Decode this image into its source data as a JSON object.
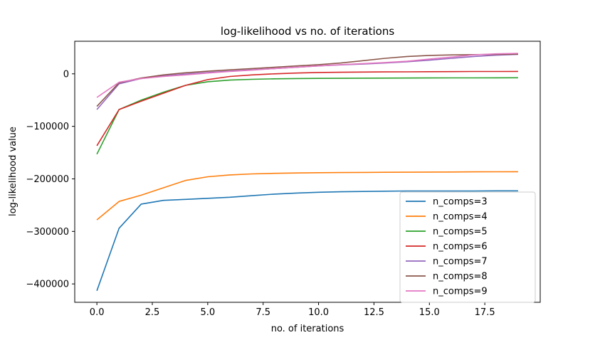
{
  "chart_data": {
    "type": "line",
    "title": "log-likelihood vs no. of iterations",
    "xlabel": "no. of iterations",
    "ylabel": "log-likelihood value",
    "xlim": [
      -1,
      20
    ],
    "ylim": [
      -435000,
      62000
    ],
    "xticks": [
      0.0,
      2.5,
      5.0,
      7.5,
      10.0,
      12.5,
      15.0,
      17.5
    ],
    "xtick_labels": [
      "0.0",
      "2.5",
      "5.0",
      "7.5",
      "10.0",
      "12.5",
      "15.0",
      "17.5"
    ],
    "yticks": [
      0,
      -100000,
      -200000,
      -300000,
      -400000
    ],
    "ytick_labels": [
      "0",
      "−100000",
      "−200000",
      "−300000",
      "−400000"
    ],
    "grid": false,
    "legend_position": "lower-right",
    "x": [
      0,
      1,
      2,
      3,
      4,
      5,
      6,
      7,
      8,
      9,
      10,
      11,
      12,
      13,
      14,
      15,
      16,
      17,
      18,
      19
    ],
    "series": [
      {
        "name": "n_comps=3",
        "color": "#1f77b4",
        "values": [
          -413000,
          -294000,
          -248000,
          -241000,
          -239000,
          -237000,
          -235000,
          -232000,
          -229000,
          -227000,
          -225500,
          -224500,
          -224000,
          -223500,
          -223000,
          -223000,
          -223000,
          -223000,
          -222800,
          -222800
        ]
      },
      {
        "name": "n_comps=4",
        "color": "#ff7f0e",
        "values": [
          -278000,
          -243000,
          -231000,
          -217000,
          -203000,
          -196000,
          -192500,
          -190500,
          -189500,
          -188800,
          -188300,
          -188000,
          -187700,
          -187500,
          -187300,
          -187100,
          -186900,
          -186700,
          -186500,
          -186400
        ]
      },
      {
        "name": "n_comps=5",
        "color": "#2ca02c",
        "values": [
          -153000,
          -68000,
          -50000,
          -35000,
          -22000,
          -15000,
          -12000,
          -10500,
          -9500,
          -9000,
          -8700,
          -8500,
          -8300,
          -8100,
          -8000,
          -7900,
          -7800,
          -7700,
          -7600,
          -7500
        ]
      },
      {
        "name": "n_comps=6",
        "color": "#d62728",
        "values": [
          -137000,
          -68000,
          -52000,
          -37000,
          -22000,
          -11000,
          -5000,
          -2000,
          0,
          1500,
          2500,
          3000,
          3300,
          3600,
          3800,
          4000,
          4200,
          4400,
          4500,
          4600
        ]
      },
      {
        "name": "n_comps=7",
        "color": "#9467bd",
        "values": [
          -68000,
          -19000,
          -9000,
          -4000,
          -500,
          2500,
          5000,
          7500,
          10000,
          12500,
          15000,
          17000,
          18500,
          20500,
          23000,
          26000,
          29500,
          33000,
          35500,
          37000
        ]
      },
      {
        "name": "n_comps=8",
        "color": "#8c564b",
        "values": [
          -62000,
          -17000,
          -8000,
          -2000,
          2000,
          5000,
          7500,
          10000,
          12500,
          15000,
          17500,
          20500,
          25000,
          29500,
          33000,
          35000,
          36000,
          36500,
          37000,
          37500
        ]
      },
      {
        "name": "n_comps=9",
        "color": "#e377c2",
        "values": [
          -45000,
          -16000,
          -9000,
          -5000,
          -2000,
          1500,
          4500,
          7000,
          10000,
          12500,
          15000,
          17500,
          19500,
          21500,
          24000,
          28000,
          32000,
          36000,
          38000,
          39000
        ]
      }
    ]
  }
}
